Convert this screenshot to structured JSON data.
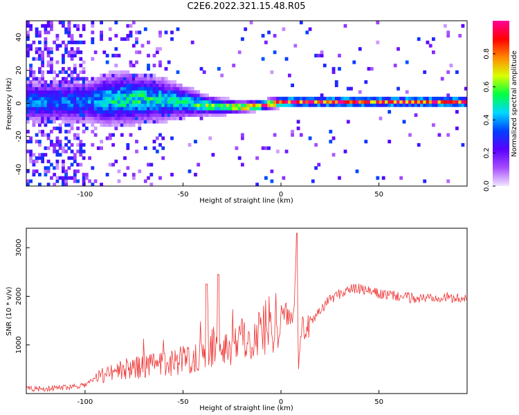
{
  "title": "C2E6.2022.321.15.48.R05",
  "chart_data": [
    {
      "type": "heatmap",
      "title": "C2E6.2022.321.15.48.R05",
      "xlabel": "Height of straight line (km)",
      "ylabel": "Frequency (Hz)",
      "xlim": [
        -130,
        95
      ],
      "ylim": [
        -50,
        50
      ],
      "xticks": [
        -100,
        -50,
        0,
        50
      ],
      "yticks": [
        -40,
        -20,
        0,
        20,
        40
      ],
      "colorbar": {
        "label": "Normalized spectral amplitude",
        "range": [
          0,
          1
        ],
        "ticks": [
          0.0,
          0.2,
          0.4,
          0.6,
          0.8
        ],
        "colormap": [
          "#f2e6ff",
          "#a64dff",
          "#5a00ff",
          "#0040ff",
          "#00d9ff",
          "#00ff40",
          "#d9ff00",
          "#ff8800",
          "#ff0000",
          "#ff0099"
        ]
      },
      "core_profile": {
        "x": [
          -100,
          -90,
          -80,
          -70,
          -60,
          -50,
          -40,
          -30,
          -20,
          -10,
          0,
          10,
          20,
          30,
          40,
          50,
          60,
          70,
          80,
          90
        ],
        "center_freq": [
          0,
          1,
          2,
          2,
          1,
          0,
          -2,
          -3,
          -3,
          -2,
          0,
          0,
          0,
          0,
          0,
          0,
          0,
          0,
          0,
          0
        ],
        "half_width": [
          8,
          10,
          10,
          9,
          8,
          6,
          4,
          3,
          2,
          2,
          2,
          2,
          2,
          2,
          2,
          2,
          2,
          2,
          2,
          2
        ],
        "peak_amplitude": [
          0.35,
          0.45,
          0.5,
          0.5,
          0.45,
          0.5,
          0.55,
          0.6,
          0.8,
          0.85,
          0.9,
          0.85,
          0.85,
          0.85,
          0.85,
          0.85,
          0.85,
          0.85,
          0.85,
          0.85
        ]
      }
    },
    {
      "type": "line",
      "xlabel": "Height of straight line (km)",
      "ylabel": "SNR (10 * v/v)",
      "xlim": [
        -130,
        95
      ],
      "ylim": [
        0,
        3400
      ],
      "xticks": [
        -100,
        -50,
        0,
        50
      ],
      "yticks": [
        1000,
        2000,
        3000
      ],
      "color": "#ee3333",
      "series": [
        {
          "x": [
            -130,
            -120,
            -110,
            -100,
            -95,
            -90,
            -80,
            -70,
            -60,
            -50,
            -45,
            -40,
            -35,
            -30,
            -25,
            -20,
            -15,
            -10,
            -5,
            0,
            3,
            5,
            7,
            8,
            9,
            10,
            12,
            15,
            20,
            25,
            30,
            35,
            40,
            45,
            50,
            60,
            70,
            80,
            90,
            95
          ],
          "values": [
            100,
            100,
            130,
            180,
            300,
            400,
            500,
            550,
            600,
            700,
            750,
            800,
            900,
            950,
            1000,
            1100,
            1200,
            1300,
            1500,
            1600,
            1650,
            1500,
            2000,
            3300,
            600,
            1400,
            1300,
            1400,
            1700,
            1950,
            2050,
            2150,
            2150,
            2100,
            2050,
            2000,
            1950,
            2000,
            1950,
            2000
          ]
        }
      ],
      "annotations": [
        {
          "x": 8,
          "y": 3300
        },
        {
          "x": -38,
          "y": 2250
        },
        {
          "x": -32,
          "y": 2450
        }
      ]
    }
  ]
}
